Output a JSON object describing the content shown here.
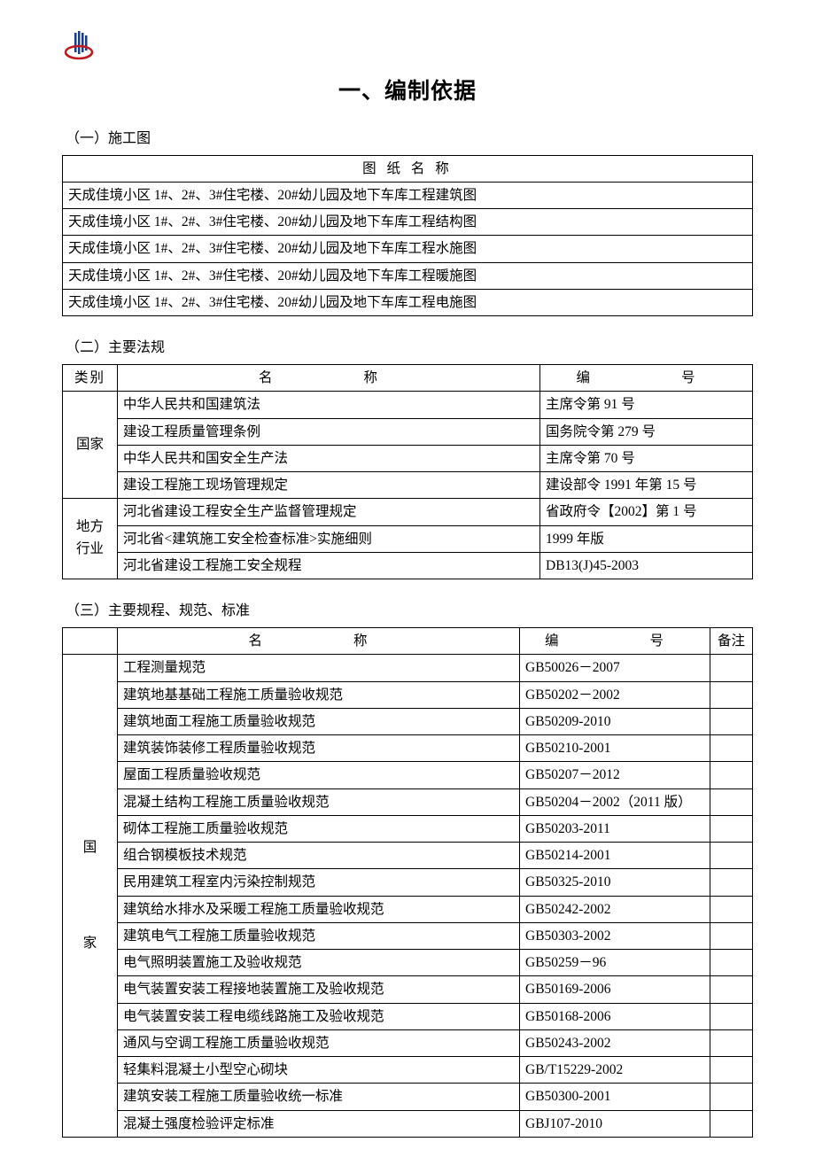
{
  "logo": {
    "colors": {
      "red": "#c01920",
      "blue": "#1a3a8a"
    }
  },
  "mainTitle": "一、编制依据",
  "section1": {
    "heading": "（一）施工图",
    "headerLabel": "图 纸 名 称",
    "rows": [
      "天成佳境小区 1#、2#、3#住宅楼、20#幼儿园及地下车库工程建筑图",
      "天成佳境小区 1#、2#、3#住宅楼、20#幼儿园及地下车库工程结构图",
      "天成佳境小区 1#、2#、3#住宅楼、20#幼儿园及地下车库工程水施图",
      "天成佳境小区 1#、2#、3#住宅楼、20#幼儿园及地下车库工程暖施图",
      "天成佳境小区 1#、2#、3#住宅楼、20#幼儿园及地下车库工程电施图"
    ]
  },
  "section2": {
    "heading": "（二）主要法规",
    "headers": {
      "cat": "类别",
      "name": "名　　称",
      "code": "编　　号"
    },
    "groups": [
      {
        "cat": "国家",
        "rows": [
          {
            "name": "中华人民共和国建筑法",
            "code": "主席令第 91 号"
          },
          {
            "name": "建设工程质量管理条例",
            "code": "国务院令第 279 号"
          },
          {
            "name": "中华人民共和国安全生产法",
            "code": "主席令第 70 号"
          },
          {
            "name": "建设工程施工现场管理规定",
            "code": "建设部令 1991 年第 15 号"
          }
        ]
      },
      {
        "cat": "地方\n行业",
        "rows": [
          {
            "name": "河北省建设工程安全生产监督管理规定",
            "code": "省政府令【2002】第 1 号"
          },
          {
            "name": "河北省<建筑施工安全检查标准>实施细则",
            "code": "1999 年版"
          },
          {
            "name": "河北省建设工程施工安全规程",
            "code": "DB13(J)45-2003"
          }
        ]
      }
    ]
  },
  "section3": {
    "heading": "（三）主要规程、规范、标准",
    "headers": {
      "name": "名　　称",
      "code": "编　　号",
      "note": "备注"
    },
    "groups": [
      {
        "cat": "国\n\n家",
        "rows": [
          {
            "name": "工程测量规范",
            "code": "GB50026－2007",
            "note": ""
          },
          {
            "name": "建筑地基基础工程施工质量验收规范",
            "code": "GB50202－2002",
            "note": ""
          },
          {
            "name": "建筑地面工程施工质量验收规范",
            "code": "GB50209-2010",
            "note": ""
          },
          {
            "name": "建筑装饰装修工程质量验收规范",
            "code": "GB50210-2001",
            "note": ""
          },
          {
            "name": "屋面工程质量验收规范",
            "code": "GB50207－2012",
            "note": ""
          },
          {
            "name": "混凝土结构工程施工质量验收规范",
            "code": "GB50204－2002（2011 版）",
            "note": ""
          },
          {
            "name": "砌体工程施工质量验收规范",
            "code": "GB50203-2011",
            "note": ""
          },
          {
            "name": "组合钢模板技术规范",
            "code": "GB50214-2001",
            "note": ""
          },
          {
            "name": "民用建筑工程室内污染控制规范",
            "code": "GB50325-2010",
            "note": ""
          },
          {
            "name": "建筑给水排水及采暖工程施工质量验收规范",
            "code": "GB50242-2002",
            "note": ""
          },
          {
            "name": "建筑电气工程施工质量验收规范",
            "code": "GB50303-2002",
            "note": ""
          },
          {
            "name": "电气照明装置施工及验收规范",
            "code": "GB50259－96",
            "note": ""
          },
          {
            "name": "电气装置安装工程接地装置施工及验收规范",
            "code": "GB50169-2006",
            "note": ""
          },
          {
            "name": "电气装置安装工程电缆线路施工及验收规范",
            "code": "GB50168-2006",
            "note": ""
          },
          {
            "name": "通风与空调工程施工质量验收规范",
            "code": "GB50243-2002",
            "note": ""
          },
          {
            "name": "轻集料混凝土小型空心砌块",
            "code": "GB/T15229-2002",
            "note": ""
          },
          {
            "name": "建筑安装工程施工质量验收统一标准",
            "code": "GB50300-2001",
            "note": ""
          },
          {
            "name": "混凝土强度检验评定标准",
            "code": "GBJ107-2010",
            "note": ""
          }
        ]
      }
    ]
  }
}
